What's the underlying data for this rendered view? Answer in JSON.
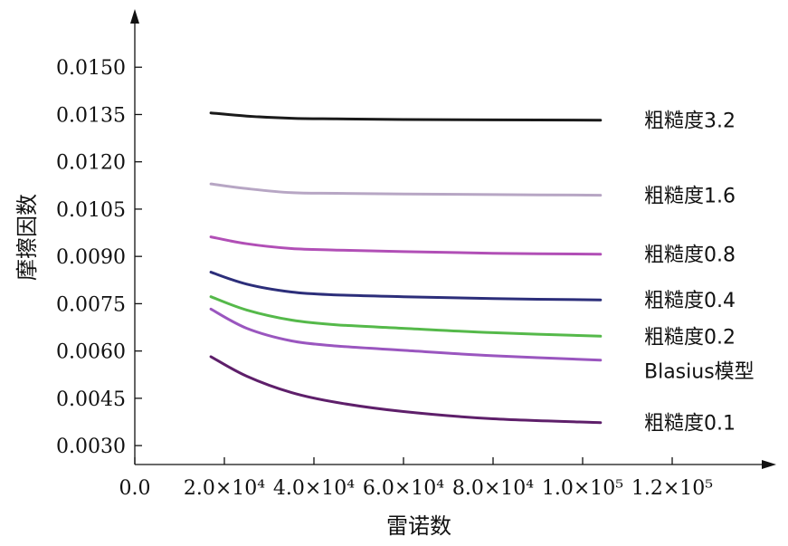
{
  "chart_data": {
    "type": "line",
    "title": "",
    "xlabel": "雷诺数",
    "ylabel": "摩擦因数",
    "xlim": [
      0,
      120000
    ],
    "ylim": [
      0.0024,
      0.0165
    ],
    "x_ticks": [
      {
        "value": 0,
        "label": "0.0"
      },
      {
        "value": 20000,
        "label": "2.0×10⁴"
      },
      {
        "value": 40000,
        "label": "4.0×10⁴"
      },
      {
        "value": 60000,
        "label": "6.0×10⁴"
      },
      {
        "value": 80000,
        "label": "8.0×10⁴"
      },
      {
        "value": 100000,
        "label": "1.0×10⁵"
      },
      {
        "value": 120000,
        "label": "1.2×10⁵"
      }
    ],
    "y_ticks": [
      {
        "value": 0.003,
        "label": "0.0030"
      },
      {
        "value": 0.0045,
        "label": "0.0045"
      },
      {
        "value": 0.006,
        "label": "0.0060"
      },
      {
        "value": 0.0075,
        "label": "0.0075"
      },
      {
        "value": 0.009,
        "label": "0.0090"
      },
      {
        "value": 0.0105,
        "label": "0.0105"
      },
      {
        "value": 0.012,
        "label": "0.0120"
      },
      {
        "value": 0.0135,
        "label": "0.0135"
      },
      {
        "value": 0.015,
        "label": "0.0150"
      }
    ],
    "grid": false,
    "legend": "inline-right",
    "series": [
      {
        "name": "粗糙度3.2",
        "color": "#1a1a1a",
        "x": [
          17000,
          25000,
          35000,
          45000,
          60000,
          80000,
          104000
        ],
        "y": [
          0.01355,
          0.01345,
          0.01338,
          0.01336,
          0.01334,
          0.01333,
          0.01332
        ]
      },
      {
        "name": "粗糙度1.6",
        "color": "#b7a6c4",
        "x": [
          17000,
          25000,
          35000,
          45000,
          60000,
          80000,
          104000
        ],
        "y": [
          0.0113,
          0.01115,
          0.01102,
          0.011,
          0.01098,
          0.01096,
          0.01094
        ]
      },
      {
        "name": "粗糙度0.8",
        "color": "#b14fb6",
        "x": [
          17000,
          25000,
          35000,
          45000,
          60000,
          80000,
          104000
        ],
        "y": [
          0.00962,
          0.0094,
          0.00925,
          0.0092,
          0.00915,
          0.0091,
          0.00907
        ]
      },
      {
        "name": "粗糙度0.4",
        "color": "#2c2e7a",
        "x": [
          17000,
          25000,
          35000,
          45000,
          60000,
          80000,
          104000
        ],
        "y": [
          0.0085,
          0.00812,
          0.00787,
          0.00778,
          0.00772,
          0.00766,
          0.00762
        ]
      },
      {
        "name": "粗糙度0.2",
        "color": "#55b94a",
        "x": [
          17000,
          25000,
          35000,
          45000,
          60000,
          80000,
          104000
        ],
        "y": [
          0.00772,
          0.0073,
          0.00698,
          0.00683,
          0.00672,
          0.00658,
          0.00647
        ]
      },
      {
        "name": "Blasius模型",
        "color": "#9a56bf",
        "x": [
          17000,
          25000,
          35000,
          45000,
          60000,
          80000,
          104000
        ],
        "y": [
          0.00733,
          0.00672,
          0.00632,
          0.00616,
          0.00602,
          0.00585,
          0.00571
        ]
      },
      {
        "name": "粗糙度0.1",
        "color": "#5e1f6a",
        "x": [
          17000,
          25000,
          35000,
          45000,
          60000,
          80000,
          104000
        ],
        "y": [
          0.00582,
          0.0052,
          0.00468,
          0.00437,
          0.00408,
          0.00385,
          0.00373
        ]
      }
    ]
  }
}
